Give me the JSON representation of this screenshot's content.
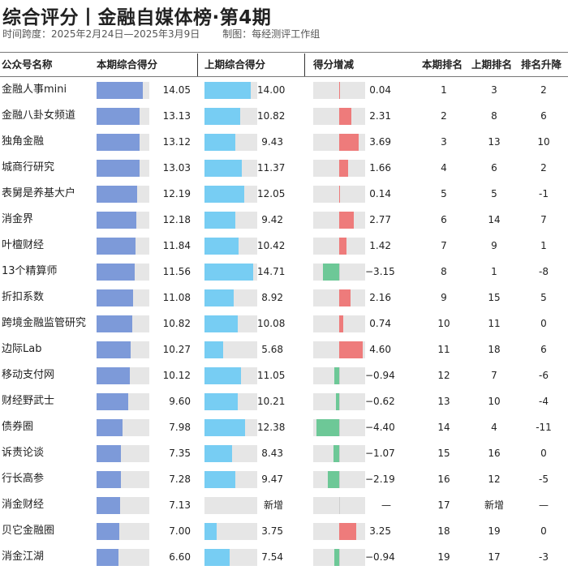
{
  "header": {
    "title": "综合评分丨金融自媒体榜·第4期",
    "period": "时间跨度：2025年2月24日—2025年3月9日",
    "credit": "制图：每经测评工作组"
  },
  "columns": {
    "name": "公众号名称",
    "current": "本期综合得分",
    "previous": "上期综合得分",
    "change": "得分增减",
    "rank_current": "本期排名",
    "rank_previous": "上期排名",
    "rank_change": "排名升降"
  },
  "chart_data": {
    "type": "table",
    "score_max": 16,
    "change_range": [
      -5,
      5
    ],
    "rows": [
      {
        "name": "金融人事mini",
        "current": 14.05,
        "current_text": "14.05",
        "previous": 14.0,
        "previous_text": "14.00",
        "change": 0.04,
        "change_text": "0.04",
        "rank_current": "1",
        "rank_previous": "3",
        "rank_change": "2"
      },
      {
        "name": "金融八卦女频道",
        "current": 13.13,
        "current_text": "13.13",
        "previous": 10.82,
        "previous_text": "10.82",
        "change": 2.31,
        "change_text": "2.31",
        "rank_current": "2",
        "rank_previous": "8",
        "rank_change": "6"
      },
      {
        "name": "独角金融",
        "current": 13.12,
        "current_text": "13.12",
        "previous": 9.43,
        "previous_text": "9.43",
        "change": 3.69,
        "change_text": "3.69",
        "rank_current": "3",
        "rank_previous": "13",
        "rank_change": "10"
      },
      {
        "name": "城商行研究",
        "current": 13.03,
        "current_text": "13.03",
        "previous": 11.37,
        "previous_text": "11.37",
        "change": 1.66,
        "change_text": "1.66",
        "rank_current": "4",
        "rank_previous": "6",
        "rank_change": "2"
      },
      {
        "name": "表舅是养基大户",
        "current": 12.19,
        "current_text": "12.19",
        "previous": 12.05,
        "previous_text": "12.05",
        "change": 0.14,
        "change_text": "0.14",
        "rank_current": "5",
        "rank_previous": "5",
        "rank_change": "-1"
      },
      {
        "name": "消金界",
        "current": 12.18,
        "current_text": "12.18",
        "previous": 9.42,
        "previous_text": "9.42",
        "change": 2.77,
        "change_text": "2.77",
        "rank_current": "6",
        "rank_previous": "14",
        "rank_change": "7"
      },
      {
        "name": "叶檀财经",
        "current": 11.84,
        "current_text": "11.84",
        "previous": 10.42,
        "previous_text": "10.42",
        "change": 1.42,
        "change_text": "1.42",
        "rank_current": "7",
        "rank_previous": "9",
        "rank_change": "1"
      },
      {
        "name": "13个精算师",
        "current": 11.56,
        "current_text": "11.56",
        "previous": 14.71,
        "previous_text": "14.71",
        "change": -3.15,
        "change_text": "−3.15",
        "rank_current": "8",
        "rank_previous": "1",
        "rank_change": "-8"
      },
      {
        "name": "折扣系数",
        "current": 11.08,
        "current_text": "11.08",
        "previous": 8.92,
        "previous_text": "8.92",
        "change": 2.16,
        "change_text": "2.16",
        "rank_current": "9",
        "rank_previous": "15",
        "rank_change": "5"
      },
      {
        "name": "跨境金融监管研究",
        "current": 10.82,
        "current_text": "10.82",
        "previous": 10.08,
        "previous_text": "10.08",
        "change": 0.74,
        "change_text": "0.74",
        "rank_current": "10",
        "rank_previous": "11",
        "rank_change": "0"
      },
      {
        "name": "边际Lab",
        "current": 10.27,
        "current_text": "10.27",
        "previous": 5.68,
        "previous_text": "5.68",
        "change": 4.6,
        "change_text": "4.60",
        "rank_current": "11",
        "rank_previous": "18",
        "rank_change": "6"
      },
      {
        "name": "移动支付网",
        "current": 10.12,
        "current_text": "10.12",
        "previous": 11.05,
        "previous_text": "11.05",
        "change": -0.94,
        "change_text": "−0.94",
        "rank_current": "12",
        "rank_previous": "7",
        "rank_change": "-6"
      },
      {
        "name": "财经野武士",
        "current": 9.6,
        "current_text": "9.60",
        "previous": 10.21,
        "previous_text": "10.21",
        "change": -0.62,
        "change_text": "−0.62",
        "rank_current": "13",
        "rank_previous": "10",
        "rank_change": "-4"
      },
      {
        "name": "债券圈",
        "current": 7.98,
        "current_text": "7.98",
        "previous": 12.38,
        "previous_text": "12.38",
        "change": -4.4,
        "change_text": "−4.40",
        "rank_current": "14",
        "rank_previous": "4",
        "rank_change": "-11"
      },
      {
        "name": "诉责论谈",
        "current": 7.35,
        "current_text": "7.35",
        "previous": 8.43,
        "previous_text": "8.43",
        "change": -1.07,
        "change_text": "−1.07",
        "rank_current": "15",
        "rank_previous": "16",
        "rank_change": "0"
      },
      {
        "name": "行长高参",
        "current": 7.28,
        "current_text": "7.28",
        "previous": 9.47,
        "previous_text": "9.47",
        "change": -2.19,
        "change_text": "−2.19",
        "rank_current": "16",
        "rank_previous": "12",
        "rank_change": "-5"
      },
      {
        "name": "消金财经",
        "current": 7.13,
        "current_text": "7.13",
        "previous": null,
        "previous_text": "新增",
        "change": null,
        "change_text": "—",
        "rank_current": "17",
        "rank_previous": "新增",
        "rank_change": "—"
      },
      {
        "name": "贝它金融圈",
        "current": 7.0,
        "current_text": "7.00",
        "previous": 3.75,
        "previous_text": "3.75",
        "change": 3.25,
        "change_text": "3.25",
        "rank_current": "18",
        "rank_previous": "19",
        "rank_change": "0"
      },
      {
        "name": "消金江湖",
        "current": 6.6,
        "current_text": "6.60",
        "previous": 7.54,
        "previous_text": "7.54",
        "change": -0.94,
        "change_text": "−0.94",
        "rank_current": "19",
        "rank_previous": "17",
        "rank_change": "-3"
      }
    ]
  }
}
